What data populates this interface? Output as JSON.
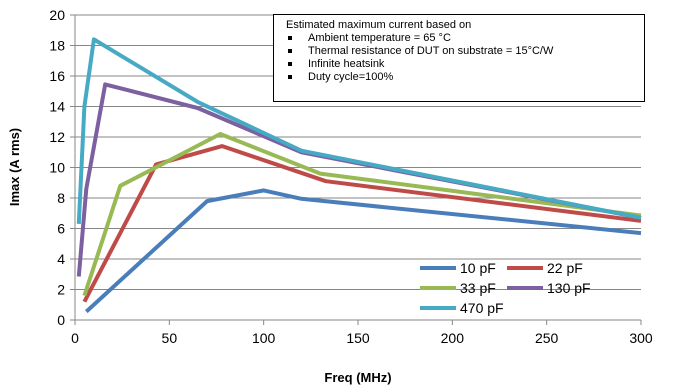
{
  "chart_data": {
    "type": "line",
    "title": "",
    "xlabel": "Freq (MHz)",
    "ylabel": "Imax (A rms)",
    "xlim": [
      0,
      300
    ],
    "ylim": [
      0,
      20
    ],
    "xticks": [
      0,
      50,
      100,
      150,
      200,
      250,
      300
    ],
    "yticks": [
      0,
      2,
      4,
      6,
      8,
      10,
      12,
      14,
      16,
      18,
      20
    ],
    "grid": "horizontal",
    "legend_position": "bottom-right",
    "annotation": {
      "heading": "Estimated maximum current based on",
      "items": [
        "Ambient temperature = 65 °C",
        "Thermal resistance of  DUT on substrate  = 15°C/W",
        "Infinite heatsink",
        "Duty cycle=100%"
      ]
    },
    "series": [
      {
        "name": "10 pF",
        "color": "#4a7ebb",
        "x": [
          6,
          70,
          100,
          120,
          300
        ],
        "y": [
          0.55,
          7.8,
          8.5,
          7.95,
          5.7
        ]
      },
      {
        "name": "22 pF",
        "color": "#be4b48",
        "x": [
          5,
          43,
          78,
          133,
          300
        ],
        "y": [
          1.2,
          10.2,
          11.4,
          9.1,
          6.5
        ]
      },
      {
        "name": "33 pF",
        "color": "#98b954",
        "x": [
          5,
          24,
          77,
          130,
          300
        ],
        "y": [
          1.6,
          8.8,
          12.2,
          9.6,
          6.85
        ]
      },
      {
        "name": "130 pF",
        "color": "#7d60a0",
        "x": [
          2,
          6,
          16,
          65,
          120,
          300
        ],
        "y": [
          2.85,
          8.6,
          15.45,
          13.9,
          11.0,
          6.7
        ]
      },
      {
        "name": "470 pF",
        "color": "#46aac5",
        "x": [
          2,
          5,
          10,
          65,
          120,
          300
        ],
        "y": [
          6.3,
          14.0,
          18.4,
          14.3,
          11.1,
          6.7
        ]
      }
    ]
  }
}
